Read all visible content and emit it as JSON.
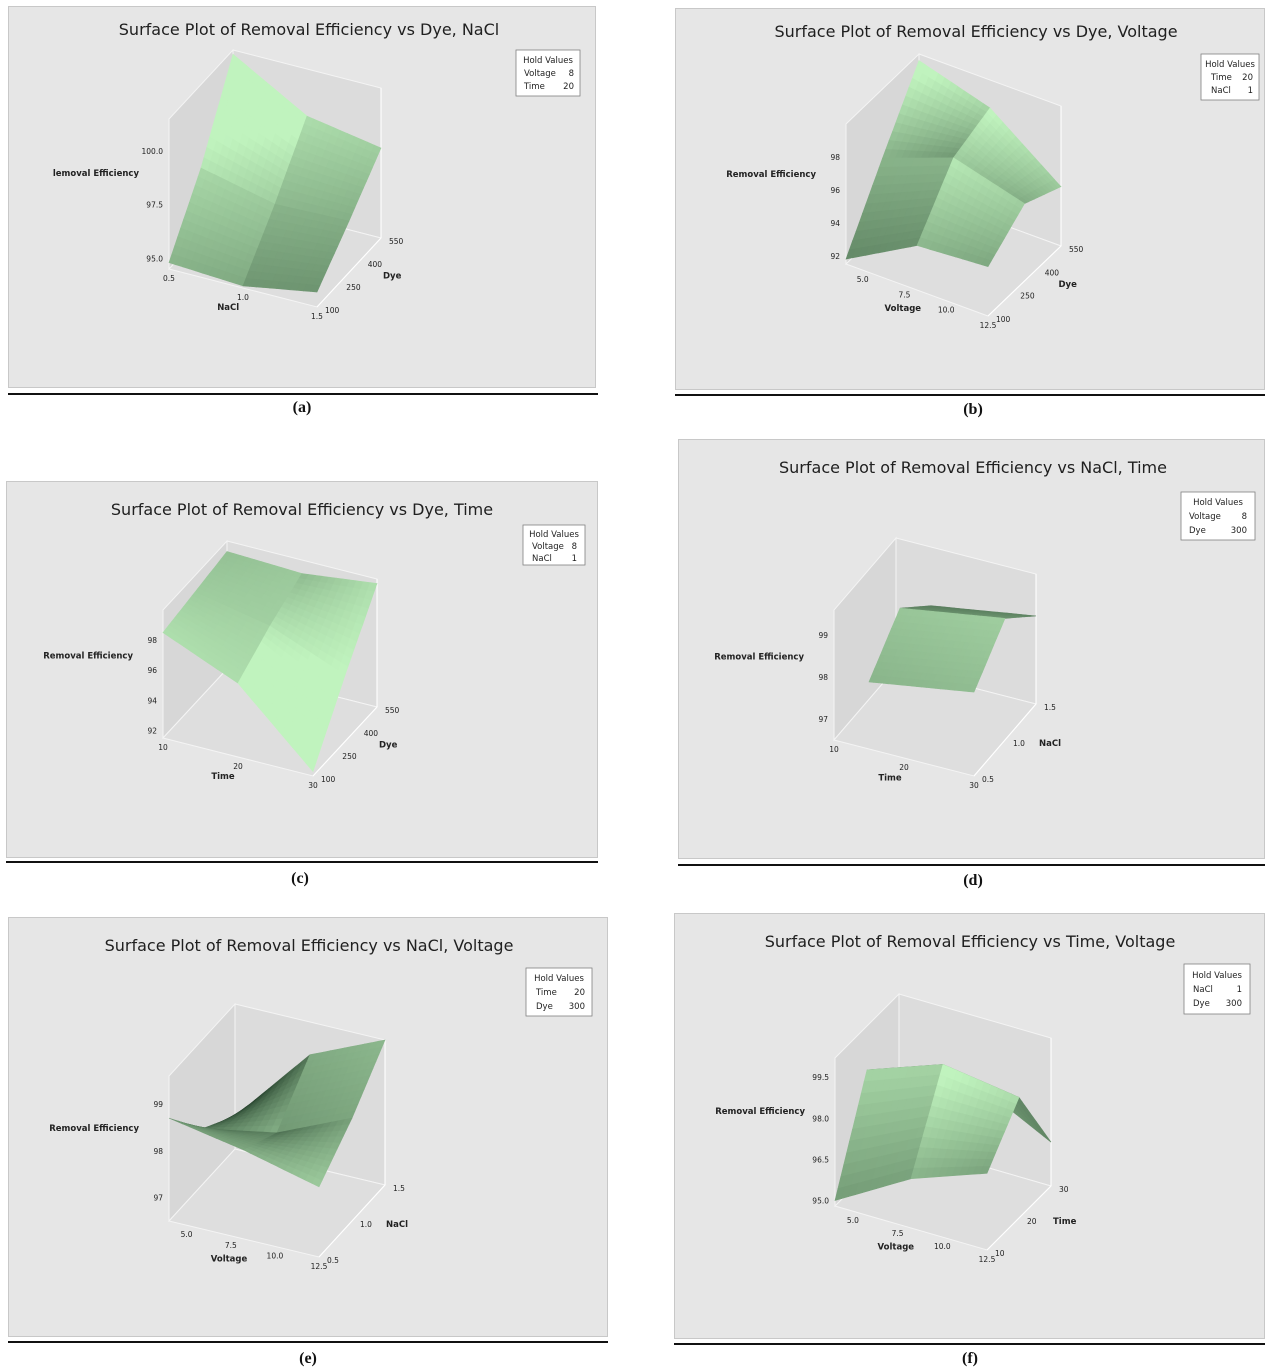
{
  "figures": [
    {
      "caption": "(a)"
    },
    {
      "caption": "(b)"
    },
    {
      "caption": "(c)"
    },
    {
      "caption": "(d)"
    },
    {
      "caption": "(e)"
    },
    {
      "caption": "(f)"
    }
  ],
  "chart_data": [
    {
      "type": "surface",
      "title": "Surface Plot of Removal Efficiency vs Dye, NaCl",
      "xlabel": "NaCl",
      "ylabel": "Dye",
      "zlabel": "lemoval Efficiency",
      "x_ticks": [
        "0.5",
        "1.0",
        "1.5"
      ],
      "xlim": [
        0.5,
        1.5
      ],
      "y_ticks": [
        "100",
        "250",
        "400",
        "550"
      ],
      "ylim": [
        100,
        550
      ],
      "z_ticks": [
        "95.0",
        "97.5",
        "100.0"
      ],
      "zlim": [
        94.5,
        101.5
      ],
      "hold_title": "Hold Values",
      "hold_values": [
        {
          "name": "Voltage",
          "value": "8"
        },
        {
          "name": "Time",
          "value": "20"
        }
      ],
      "surface_samples": {
        "x": [
          0.5,
          1.0,
          1.5
        ],
        "y": [
          100,
          325,
          550
        ],
        "z": [
          [
            94.8,
            97.6,
            101.3
          ],
          [
            94.6,
            96.8,
            99.3
          ],
          [
            95.2,
            96.9,
            98.7
          ]
        ]
      }
    },
    {
      "type": "surface",
      "title": "Surface Plot of Removal Efficiency vs Dye, Voltage",
      "xlabel": "Voltage",
      "ylabel": "Dye",
      "zlabel": "Removal Efficiency",
      "x_ticks": [
        "5.0",
        "7.5",
        "10.0",
        "12.5"
      ],
      "xlim": [
        4,
        12.5
      ],
      "y_ticks": [
        "100",
        "250",
        "400",
        "550"
      ],
      "ylim": [
        100,
        550
      ],
      "z_ticks": [
        "92",
        "94",
        "96",
        "98"
      ],
      "zlim": [
        91.5,
        100
      ],
      "hold_title": "Hold Values",
      "hold_values": [
        {
          "name": "Time",
          "value": "20"
        },
        {
          "name": "NaCl",
          "value": "1"
        }
      ],
      "surface_samples": {
        "x": [
          4,
          8.25,
          12.5
        ],
        "y": [
          100,
          325,
          550
        ],
        "z": [
          [
            91.8,
            95.8,
            99.6
          ],
          [
            94.2,
            97.4,
            98.3
          ],
          [
            94.5,
            96.2,
            95.1
          ]
        ]
      }
    },
    {
      "type": "surface",
      "title": "Surface Plot of Removal Efficiency vs Dye, Time",
      "xlabel": "Time",
      "ylabel": "Dye",
      "zlabel": "Removal Efficiency",
      "x_ticks": [
        "10",
        "20",
        "30"
      ],
      "xlim": [
        10,
        30
      ],
      "y_ticks": [
        "100",
        "250",
        "400",
        "550"
      ],
      "ylim": [
        100,
        550
      ],
      "z_ticks": [
        "92",
        "94",
        "96",
        "98"
      ],
      "zlim": [
        91.5,
        100
      ],
      "hold_title": "Hold Values",
      "hold_values": [
        {
          "name": "Voltage",
          "value": "8"
        },
        {
          "name": "NaCl",
          "value": "1"
        }
      ],
      "surface_samples": {
        "x": [
          10,
          20,
          30
        ],
        "y": [
          100,
          325,
          550
        ],
        "z": [
          [
            98.5,
            98.9,
            99.3
          ],
          [
            96.4,
            97.9,
            99.1
          ],
          [
            91.8,
            95.9,
            99.7
          ]
        ]
      }
    },
    {
      "type": "surface",
      "title": "Surface Plot of Removal Efficiency vs NaCl, Time",
      "xlabel": "Time",
      "ylabel": "NaCl",
      "zlabel": "Removal Efficiency",
      "x_ticks": [
        "10",
        "20",
        "30"
      ],
      "xlim": [
        10,
        30
      ],
      "y_ticks": [
        "0.5",
        "1.0",
        "1.5"
      ],
      "ylim": [
        0.5,
        1.5
      ],
      "z_ticks": [
        "97",
        "98",
        "99"
      ],
      "zlim": [
        96.5,
        99.6
      ],
      "hold_title": "Hold Values",
      "hold_values": [
        {
          "name": "Voltage",
          "value": "8"
        },
        {
          "name": "Dye",
          "value": "300"
        }
      ],
      "surface_samples": {
        "x": [
          15,
          22.5,
          30
        ],
        "y": [
          0.5,
          1.0,
          1.5
        ],
        "z": [
          [
            98.1,
            99.0,
            98.2
          ],
          [
            98.3,
            99.2,
            98.4
          ],
          [
            98.5,
            99.4,
            98.6
          ]
        ]
      }
    },
    {
      "type": "surface",
      "title": "Surface Plot of Removal Efficiency vs NaCl, Voltage",
      "xlabel": "Voltage",
      "ylabel": "NaCl",
      "zlabel": "Removal Efficiency",
      "x_ticks": [
        "5.0",
        "7.5",
        "10.0",
        "12.5"
      ],
      "xlim": [
        4,
        12.5
      ],
      "y_ticks": [
        "0.5",
        "1.0",
        "1.5"
      ],
      "ylim": [
        0.5,
        1.5
      ],
      "z_ticks": [
        "97",
        "98",
        "99"
      ],
      "zlim": [
        96.5,
        99.6
      ],
      "hold_title": "Hold Values",
      "hold_values": [
        {
          "name": "Time",
          "value": "20"
        },
        {
          "name": "Dye",
          "value": "300"
        }
      ],
      "surface_samples": {
        "x": [
          4,
          8.25,
          12.5
        ],
        "y": [
          0.5,
          1.0,
          1.5
        ],
        "z": [
          [
            98.7,
            97.7,
            97.2
          ],
          [
            98.4,
            98.0,
            98.9
          ],
          [
            98.0,
            98.7,
            99.6
          ]
        ]
      }
    },
    {
      "type": "surface",
      "title": "Surface Plot of Removal Efficiency vs Time, Voltage",
      "xlabel": "Voltage",
      "ylabel": "Time",
      "zlabel": "Removal Efficiency",
      "x_ticks": [
        "5.0",
        "7.5",
        "10.0",
        "12.5"
      ],
      "xlim": [
        4,
        12.5
      ],
      "y_ticks": [
        "10",
        "20",
        "30"
      ],
      "ylim": [
        10,
        30
      ],
      "z_ticks": [
        "95.0",
        "96.5",
        "98.0",
        "99.5"
      ],
      "zlim": [
        94.8,
        100.2
      ],
      "hold_title": "Hold Values",
      "hold_values": [
        {
          "name": "NaCl",
          "value": "1"
        },
        {
          "name": "Dye",
          "value": "300"
        }
      ],
      "surface_samples": {
        "x": [
          4,
          8.25,
          12.5
        ],
        "y": [
          10,
          20,
          30
        ],
        "z": [
          [
            95.0,
            98.6,
            97.2
          ],
          [
            96.6,
            99.6,
            97.8
          ],
          [
            97.6,
            99.2,
            96.4
          ]
        ]
      }
    }
  ]
}
